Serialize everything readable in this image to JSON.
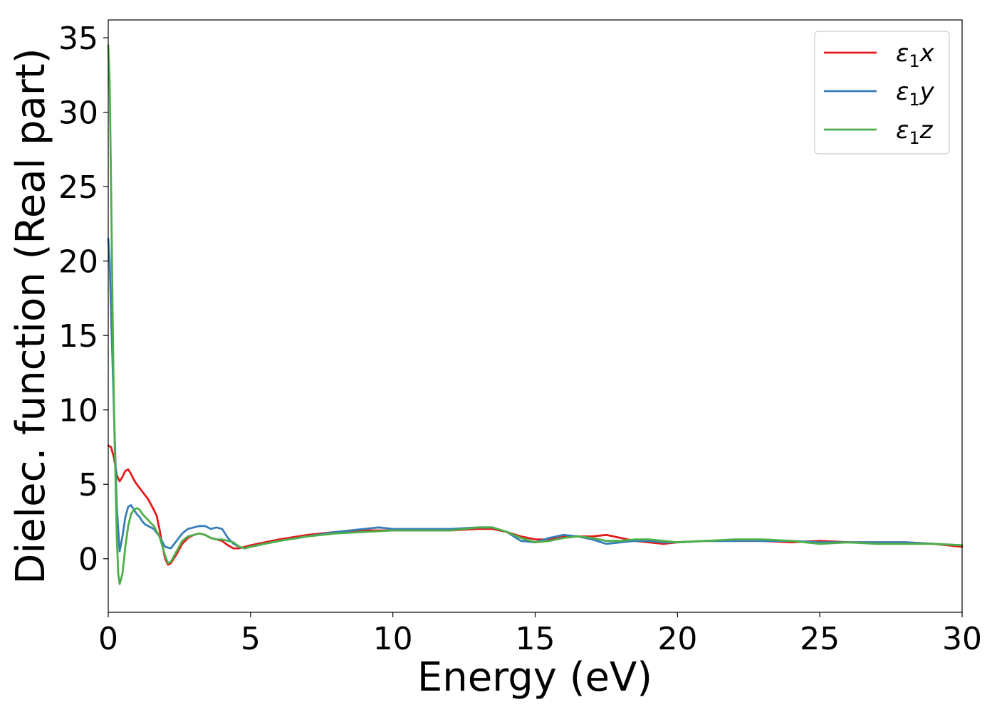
{
  "chart_data": {
    "type": "line",
    "title": "",
    "xlabel": "Energy (eV)",
    "ylabel": "Dielec. function (Real part)",
    "xlim": [
      0,
      30
    ],
    "ylim": [
      -3.6,
      36.2
    ],
    "xticks": [
      0,
      5,
      10,
      15,
      20,
      25,
      30
    ],
    "yticks": [
      0,
      5,
      10,
      15,
      20,
      25,
      30,
      35
    ],
    "grid": false,
    "legend_position": "top-right",
    "legend": [
      {
        "symbol": "ε",
        "sub": "1",
        "var": "x"
      },
      {
        "symbol": "ε",
        "sub": "1",
        "var": "y"
      },
      {
        "symbol": "ε",
        "sub": "1",
        "var": "z"
      }
    ],
    "series": [
      {
        "color": "#e41a1c",
        "x": [
          0,
          0.1,
          0.2,
          0.3,
          0.4,
          0.5,
          0.6,
          0.7,
          0.8,
          0.9,
          1.0,
          1.2,
          1.4,
          1.6,
          1.7,
          1.8,
          1.9,
          2.0,
          2.1,
          2.2,
          2.4,
          2.6,
          2.8,
          3.0,
          3.2,
          3.4,
          3.6,
          3.8,
          4.0,
          4.2,
          4.4,
          4.6,
          4.8,
          5.0,
          5.5,
          6,
          7,
          8,
          9,
          10,
          11,
          12,
          13,
          13.5,
          14,
          14.5,
          15,
          15.5,
          16,
          16.5,
          17,
          17.5,
          18,
          18.5,
          19,
          19.5,
          20,
          21,
          22,
          23,
          24,
          25,
          26,
          27,
          28,
          29,
          30
        ],
        "values": [
          7.6,
          7.5,
          6.8,
          5.6,
          5.2,
          5.5,
          5.9,
          6.0,
          5.7,
          5.3,
          5.0,
          4.5,
          4.0,
          3.3,
          2.9,
          2.0,
          0.9,
          0.0,
          -0.4,
          -0.3,
          0.3,
          1.0,
          1.4,
          1.6,
          1.7,
          1.6,
          1.4,
          1.3,
          1.2,
          0.9,
          0.7,
          0.7,
          0.8,
          0.9,
          1.1,
          1.3,
          1.6,
          1.8,
          1.9,
          1.9,
          1.9,
          1.9,
          2.0,
          2.0,
          1.8,
          1.5,
          1.3,
          1.3,
          1.5,
          1.5,
          1.5,
          1.6,
          1.4,
          1.2,
          1.1,
          1.0,
          1.1,
          1.2,
          1.2,
          1.2,
          1.1,
          1.2,
          1.1,
          1.1,
          1.1,
          1.0,
          0.8
        ]
      },
      {
        "color": "#377eb8",
        "x": [
          0,
          0.05,
          0.1,
          0.2,
          0.3,
          0.4,
          0.5,
          0.6,
          0.7,
          0.8,
          0.9,
          1.0,
          1.1,
          1.2,
          1.3,
          1.4,
          1.6,
          1.8,
          2.0,
          2.2,
          2.4,
          2.6,
          2.8,
          3.0,
          3.2,
          3.4,
          3.6,
          3.8,
          4.0,
          4.2,
          4.4,
          4.6,
          4.8,
          5.0,
          5.5,
          6,
          7,
          8,
          9,
          9.5,
          10,
          10.5,
          11,
          12,
          13,
          13.5,
          14,
          14.5,
          15,
          15.5,
          16,
          16.5,
          17,
          17.5,
          18,
          18.5,
          19,
          19.5,
          20,
          21,
          22,
          23,
          24,
          25,
          26,
          27,
          28,
          29,
          30
        ],
        "values": [
          21.5,
          20.0,
          16.5,
          10.0,
          3.5,
          0.5,
          1.5,
          2.8,
          3.5,
          3.6,
          3.3,
          3.0,
          2.8,
          2.5,
          2.3,
          2.2,
          2.0,
          1.5,
          0.8,
          0.7,
          1.2,
          1.7,
          2.0,
          2.1,
          2.2,
          2.2,
          2.0,
          2.1,
          2.0,
          1.4,
          1.0,
          0.8,
          0.7,
          0.8,
          1.0,
          1.2,
          1.5,
          1.8,
          2.0,
          2.1,
          2.0,
          2.0,
          2.0,
          2.0,
          2.1,
          2.1,
          1.8,
          1.2,
          1.1,
          1.4,
          1.6,
          1.5,
          1.3,
          1.0,
          1.1,
          1.2,
          1.2,
          1.1,
          1.1,
          1.2,
          1.2,
          1.2,
          1.2,
          1.1,
          1.1,
          1.1,
          1.1,
          1.0,
          0.9
        ]
      },
      {
        "color": "#4daf4a",
        "x": [
          0,
          0.05,
          0.1,
          0.15,
          0.2,
          0.3,
          0.35,
          0.4,
          0.5,
          0.6,
          0.7,
          0.8,
          0.9,
          1.0,
          1.1,
          1.2,
          1.4,
          1.6,
          1.8,
          2.0,
          2.1,
          2.2,
          2.4,
          2.6,
          2.8,
          3.0,
          3.2,
          3.4,
          3.6,
          3.8,
          4.0,
          4.2,
          4.4,
          4.6,
          4.8,
          5.0,
          5.5,
          6,
          7,
          8,
          9,
          10,
          11,
          12,
          13,
          13.5,
          14,
          14.5,
          15,
          15.5,
          16,
          16.5,
          17,
          17.5,
          18,
          18.5,
          19,
          19.5,
          20,
          21,
          22,
          23,
          24,
          25,
          26,
          27,
          28,
          29,
          30
        ],
        "values": [
          34.5,
          32.0,
          25.0,
          17.0,
          10.0,
          1.5,
          -1.0,
          -1.7,
          -1.0,
          0.8,
          2.2,
          3.0,
          3.3,
          3.4,
          3.3,
          3.0,
          2.6,
          2.2,
          1.5,
          0.2,
          -0.3,
          -0.2,
          0.5,
          1.2,
          1.5,
          1.6,
          1.7,
          1.6,
          1.4,
          1.3,
          1.3,
          1.2,
          1.1,
          0.8,
          0.7,
          0.8,
          1.0,
          1.2,
          1.5,
          1.7,
          1.8,
          1.9,
          1.9,
          1.9,
          2.1,
          2.1,
          1.8,
          1.4,
          1.1,
          1.2,
          1.4,
          1.5,
          1.4,
          1.2,
          1.2,
          1.3,
          1.3,
          1.2,
          1.1,
          1.2,
          1.3,
          1.3,
          1.2,
          1.0,
          1.1,
          1.0,
          1.0,
          1.0,
          0.9
        ]
      }
    ]
  }
}
